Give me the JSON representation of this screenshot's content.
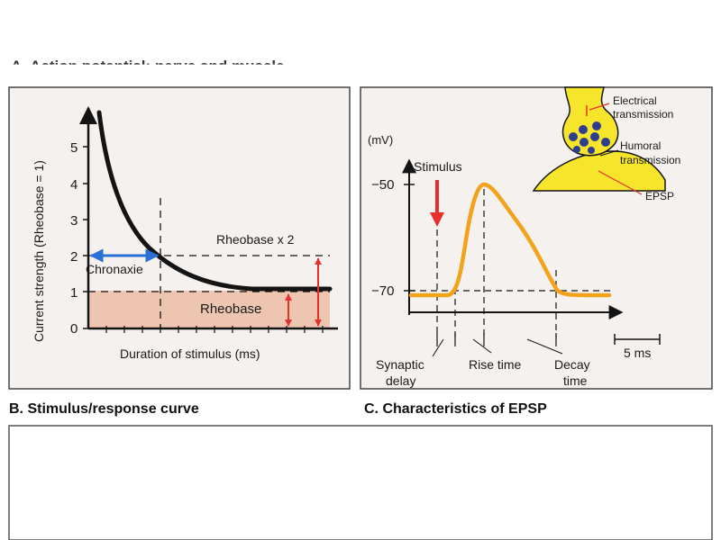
{
  "header_fragment": "A. Action potential: nerve and muscle",
  "panel_b": {
    "caption": "B. Stimulus/response curve",
    "y_axis_label": "Current strength (Rheobase = 1)",
    "x_axis_label": "Duration of stimulus (ms)",
    "y_ticks": [
      "0",
      "1",
      "2",
      "3",
      "4",
      "5"
    ],
    "chronaxie_label": "Chronaxie",
    "rheobase_x2_label": "Rheobase x 2",
    "rheobase_label": "Rheobase"
  },
  "panel_c": {
    "caption": "C. Characteristics of EPSP",
    "unit_label": "(mV)",
    "stimulus_label": "Stimulus",
    "y_ticks": [
      "−50",
      "−70"
    ],
    "synaptic_delay_label_1": "Synaptic",
    "synaptic_delay_label_2": "delay",
    "rise_time_label": "Rise time",
    "decay_time_label_1": "Decay",
    "decay_time_label_2": "time",
    "scale_label": "5 ms",
    "electrical_label_1": "Electrical",
    "electrical_label_2": "transmission",
    "humoral_label_1": "Humoral",
    "humoral_label_2": "transmission",
    "epsp_label": "EPSP"
  },
  "colors": {
    "page_bg": "#ffffff",
    "panel_bg": "#f4f1ee",
    "curve_dark": "#141414",
    "chronaxie_arrow": "#2a6fd6",
    "red_arrow": "#e8302a",
    "rheobase_fill": "#eec5b0",
    "epsp_curve": "#f2a31b",
    "synapse_yellow": "#f6e52a",
    "vesicle_blue": "#2d3d8f"
  }
}
